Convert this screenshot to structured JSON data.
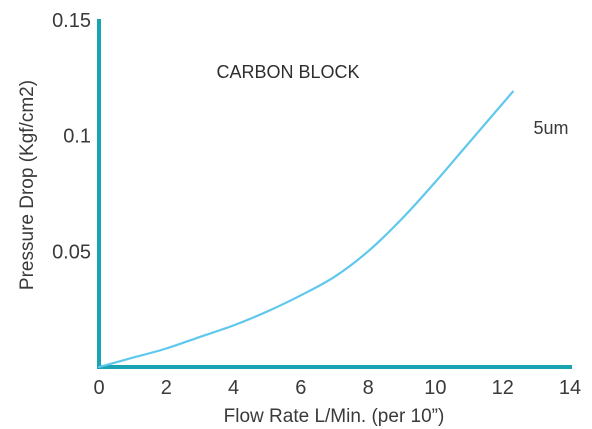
{
  "chart_data": {
    "type": "line",
    "title": "CARBON BLOCK",
    "xlabel": "Flow Rate L/Min. (per 10”)",
    "ylabel": "Pressure Drop (Kgf/cm2)",
    "xlim": [
      0,
      14
    ],
    "ylim": [
      0,
      0.15
    ],
    "x_ticks": [
      "0",
      "2",
      "4",
      "6",
      "8",
      "10",
      "12",
      "14"
    ],
    "y_ticks": [
      "0.05",
      "0.1",
      "0.15"
    ],
    "grid": false,
    "legend": "none",
    "series": [
      {
        "name": "5um",
        "x": [
          0,
          1,
          2,
          3,
          4,
          5,
          6,
          7,
          8,
          9,
          10,
          11,
          12.3
        ],
        "y": [
          0,
          0.004,
          0.008,
          0.013,
          0.018,
          0.024,
          0.031,
          0.039,
          0.05,
          0.064,
          0.08,
          0.097,
          0.119
        ]
      }
    ],
    "colors": {
      "axis": "#1aa3b0",
      "line": "#5fc8ec"
    }
  }
}
